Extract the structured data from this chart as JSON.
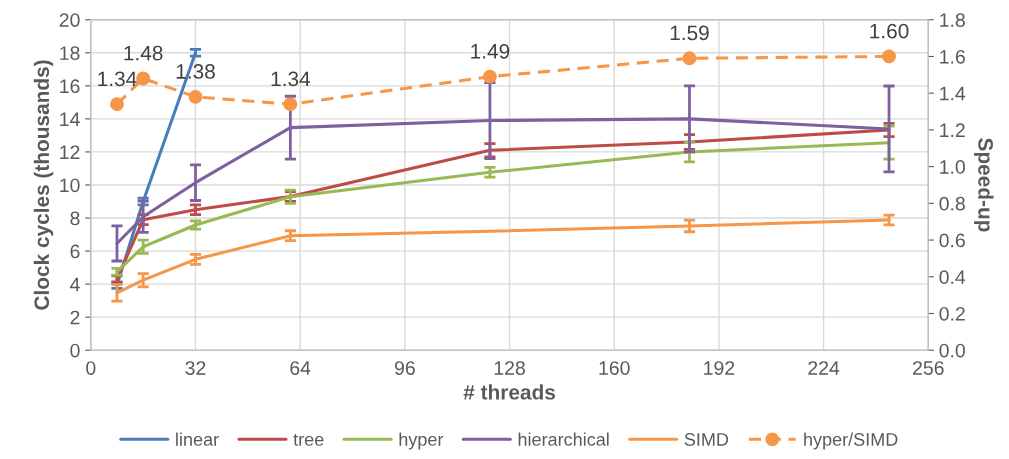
{
  "chart_data": {
    "type": "line",
    "xlabel": "# threads",
    "ylabel": "Clock cycles (thousands)",
    "y2label": "Speed-up",
    "x": [
      8,
      16,
      32,
      61,
      122,
      183,
      244
    ],
    "xlim": [
      0,
      256
    ],
    "xticks": [
      0,
      32,
      64,
      96,
      128,
      160,
      192,
      224,
      256
    ],
    "ylim": [
      0,
      20
    ],
    "yticks": [
      0,
      2,
      4,
      6,
      8,
      10,
      12,
      14,
      16,
      18,
      20
    ],
    "y2lim": [
      0,
      1.8
    ],
    "y2ticks": [
      {
        "value": 0,
        "label": "0.0"
      },
      {
        "value": 0.2,
        "label": "0.2"
      },
      {
        "value": 0.4,
        "label": "0.4"
      },
      {
        "value": 0.6,
        "label": "0.6"
      },
      {
        "value": 0.8,
        "label": "0.8"
      },
      {
        "value": 1.0,
        "label": "1.0"
      },
      {
        "value": 1.2,
        "label": "1.2"
      },
      {
        "value": 1.4,
        "label": "1.4"
      },
      {
        "value": 1.6,
        "label": "1.6"
      },
      {
        "value": 1.8,
        "label": "1.8"
      }
    ],
    "grid": true,
    "legend": "bottom",
    "series": [
      {
        "name": "linear",
        "color": "#4a7ebb",
        "x": [
          8,
          16,
          32
        ],
        "values": [
          3.94,
          9.0,
          18.0
        ],
        "errors": [
          0.2,
          0.2,
          0.2
        ]
      },
      {
        "name": "tree",
        "color": "#be4b48",
        "values": [
          4.3,
          7.9,
          8.5,
          9.3,
          12.1,
          12.6,
          13.33
        ],
        "errors": [
          0.2,
          0.3,
          0.3,
          0.3,
          0.4,
          0.45,
          0.4
        ]
      },
      {
        "name": "hyper",
        "color": "#98b954",
        "values": [
          4.75,
          6.26,
          7.58,
          9.29,
          10.77,
          12.0,
          12.56
        ],
        "errors": [
          0.2,
          0.4,
          0.25,
          0.4,
          0.3,
          0.6,
          1.0
        ]
      },
      {
        "name": "hierarchical",
        "color": "#7d60a0",
        "values": [
          6.46,
          8.08,
          10.14,
          13.47,
          13.9,
          14.0,
          13.39
        ],
        "errors": [
          1.06,
          0.95,
          1.08,
          1.9,
          2.3,
          2.0,
          2.6
        ]
      },
      {
        "name": "SIMD",
        "color": "#f79646",
        "values": [
          3.47,
          4.24,
          5.5,
          6.93,
          7.2,
          7.52,
          7.88
        ],
        "errors": [
          0.5,
          0.4,
          0.3,
          0.3,
          null,
          0.35,
          0.3
        ]
      },
      {
        "name": "hyper/SIMD",
        "color": "#f79646",
        "axis": "y2",
        "marker": "circle",
        "line_style": "dashed",
        "data_labels": true,
        "values": [
          1.34,
          1.48,
          1.38,
          1.34,
          1.49,
          1.59,
          1.6
        ],
        "value_labels": [
          "1.34",
          "1.48",
          "1.38",
          "1.34",
          "1.49",
          "1.59",
          "1.60"
        ]
      }
    ]
  }
}
